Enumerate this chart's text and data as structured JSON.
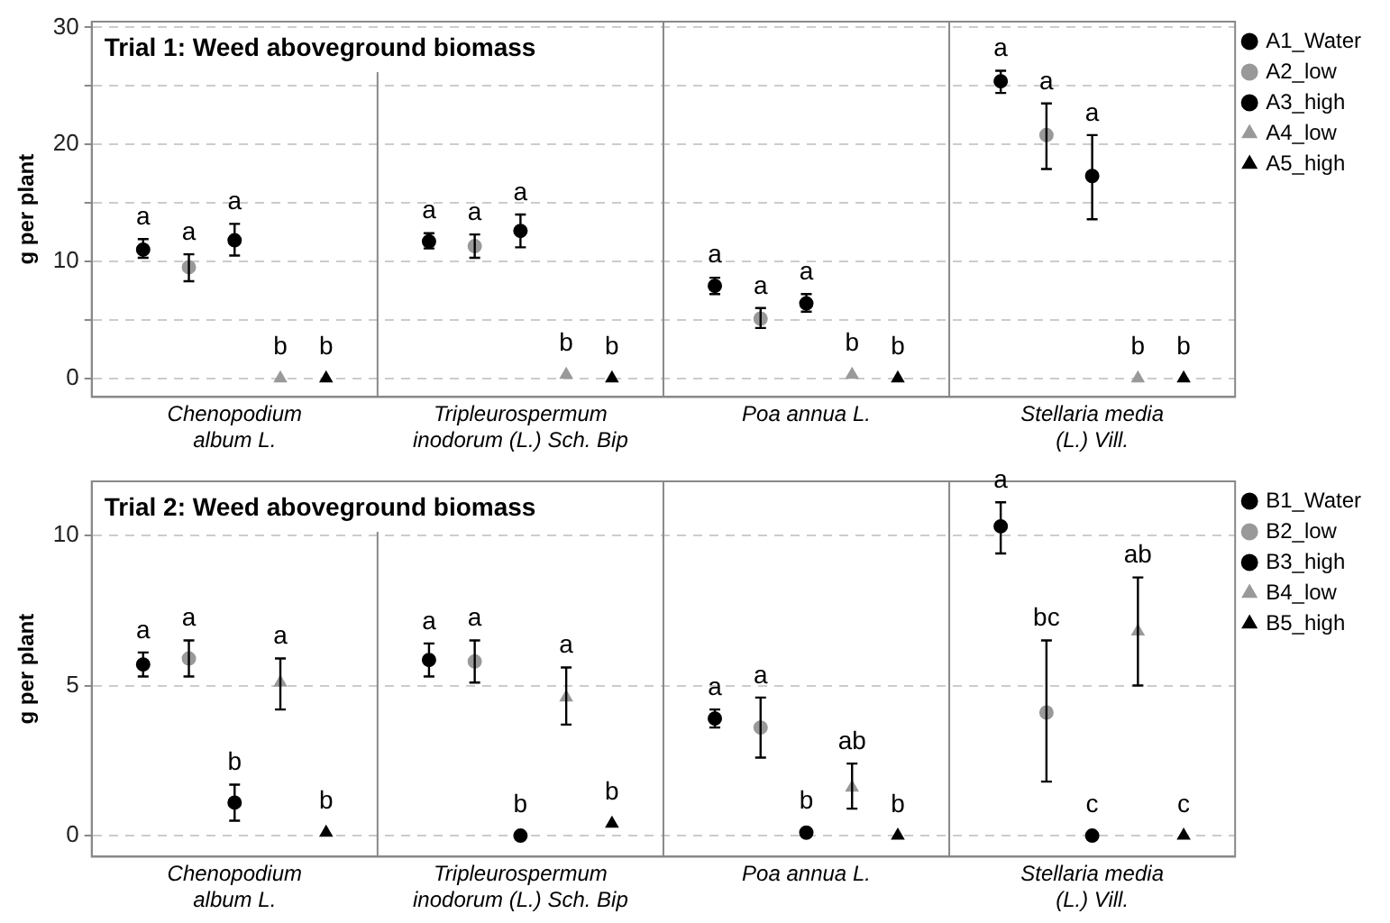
{
  "chart_data": [
    {
      "type": "scatter",
      "title": "Trial 1: Weed aboveground biomass",
      "ylabel": "g per plant",
      "categories": [
        "Chenopodium album L.",
        "Tripleurospermum inodorum (L.) Sch. Bip",
        "Poa annua L.",
        "Stellaria media (L.) Vill."
      ],
      "ylim": [
        -1.6,
        30.5
      ],
      "yticks": [
        0,
        {
          "value": 5,
          "label": null
        },
        10,
        {
          "value": 15,
          "label": null
        },
        20,
        {
          "value": 25,
          "label": null
        },
        30
      ],
      "grid": "y",
      "legend": "top right",
      "series": [
        {
          "name": "A1_Water",
          "color": "#000000",
          "marker": "circle",
          "values": [
            11.0,
            11.7,
            7.9,
            25.4
          ],
          "errors": [
            [
              10.3,
              11.9
            ],
            [
              11.1,
              12.4
            ],
            [
              7.2,
              8.6
            ],
            [
              24.4,
              26.3
            ]
          ],
          "value_labels": [
            "a",
            "a",
            "a",
            "a"
          ]
        },
        {
          "name": "A2_low",
          "color": "#999999",
          "marker": "circle",
          "values": [
            9.5,
            11.3,
            5.1,
            20.8
          ],
          "errors": [
            [
              8.3,
              10.6
            ],
            [
              10.3,
              12.3
            ],
            [
              4.3,
              6.0
            ],
            [
              17.9,
              23.5
            ]
          ],
          "value_labels": [
            "a",
            "a",
            "a",
            "a"
          ]
        },
        {
          "name": "A3_high",
          "color": "#000000",
          "marker": "circle",
          "values": [
            11.8,
            12.6,
            6.4,
            17.3
          ],
          "errors": [
            [
              10.5,
              13.2
            ],
            [
              11.2,
              14.0
            ],
            [
              5.7,
              7.2
            ],
            [
              13.6,
              20.8
            ]
          ],
          "value_labels": [
            "a",
            "a",
            "a",
            "a"
          ]
        },
        {
          "name": "A4_low",
          "color": "#999999",
          "marker": "triangle",
          "values": [
            0,
            0.3,
            0.3,
            0
          ],
          "value_labels": [
            "b",
            "b",
            "b",
            "b"
          ]
        },
        {
          "name": "A5_high",
          "color": "#000000",
          "marker": "triangle",
          "values": [
            0,
            0,
            0,
            0
          ],
          "value_labels": [
            "b",
            "b",
            "b",
            "b"
          ]
        }
      ]
    },
    {
      "type": "scatter",
      "title": "Trial 2: Weed aboveground biomass",
      "ylabel": "g per plant",
      "categories": [
        "Chenopodium album L.",
        "Tripleurospermum inodorum (L.) Sch. Bip",
        "Poa annua L.",
        "Stellaria media (L.) Vill."
      ],
      "ylim": [
        -0.7,
        11.8
      ],
      "yticks": [
        0,
        5,
        10
      ],
      "grid": "y",
      "legend": "top right",
      "series": [
        {
          "name": "B1_Water",
          "color": "#000000",
          "marker": "circle",
          "values": [
            5.7,
            5.85,
            3.9,
            10.3
          ],
          "errors": [
            [
              5.3,
              6.1
            ],
            [
              5.3,
              6.4
            ],
            [
              3.6,
              4.2
            ],
            [
              9.4,
              11.1
            ]
          ],
          "value_labels": [
            "a",
            "a",
            "a",
            "a"
          ]
        },
        {
          "name": "B2_low",
          "color": "#999999",
          "marker": "circle",
          "values": [
            5.9,
            5.8,
            3.6,
            4.1
          ],
          "errors": [
            [
              5.3,
              6.5
            ],
            [
              5.1,
              6.5
            ],
            [
              2.6,
              4.6
            ],
            [
              1.8,
              6.5
            ]
          ],
          "value_labels": [
            "a",
            "a",
            "a",
            "bc"
          ]
        },
        {
          "name": "B3_high",
          "color": "#000000",
          "marker": "circle",
          "values": [
            1.1,
            0,
            0.1,
            0
          ],
          "errors": [
            [
              0.5,
              1.7
            ],
            null,
            null,
            null
          ],
          "value_labels": [
            "b",
            "b",
            "b",
            "c"
          ]
        },
        {
          "name": "B4_low",
          "color": "#999999",
          "marker": "triangle",
          "values": [
            5.1,
            4.6,
            1.6,
            6.8
          ],
          "errors": [
            [
              4.2,
              5.9
            ],
            [
              3.7,
              5.6
            ],
            [
              0.9,
              2.4
            ],
            [
              5.0,
              8.6
            ]
          ],
          "value_labels": [
            "a",
            "a",
            "ab",
            "ab"
          ]
        },
        {
          "name": "B5_high",
          "color": "#000000",
          "marker": "triangle",
          "values": [
            0.1,
            0.4,
            0,
            0
          ],
          "value_labels": [
            "b",
            "b",
            "b",
            "c"
          ]
        }
      ]
    }
  ]
}
